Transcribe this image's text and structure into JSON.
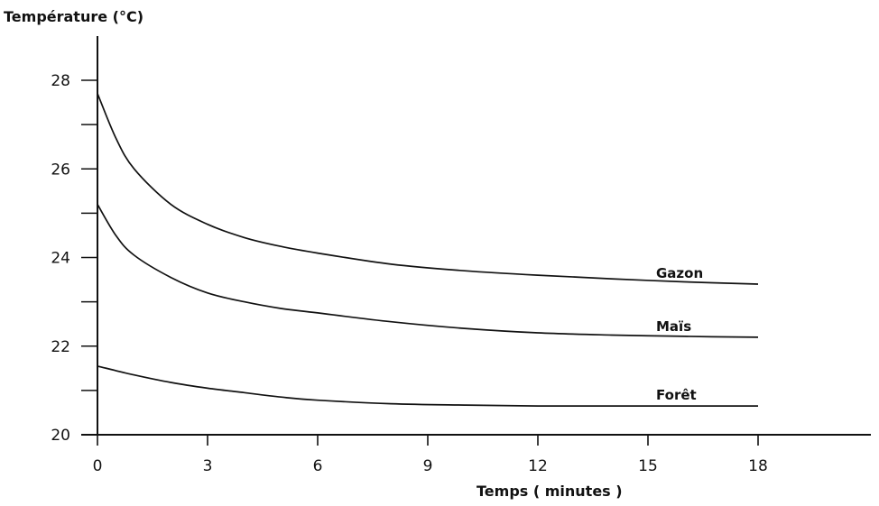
{
  "chart_data": {
    "type": "line",
    "title": "",
    "ylabel": "Température (°C)",
    "xlabel": "Temps ( minutes )",
    "xlim": [
      0,
      18
    ],
    "ylim": [
      20,
      28
    ],
    "x_ticks": [
      "0",
      "3",
      "6",
      "9",
      "12",
      "15",
      "18"
    ],
    "y_ticks": [
      "20",
      "22",
      "24",
      "26",
      "28"
    ],
    "grid": false,
    "series": [
      {
        "name": "Gazon",
        "x": [
          0,
          0.5,
          1,
          2,
          3,
          4,
          5,
          6,
          8,
          10,
          12,
          14,
          16,
          18
        ],
        "y": [
          27.7,
          26.7,
          26.0,
          25.2,
          24.75,
          24.45,
          24.25,
          24.1,
          23.85,
          23.7,
          23.6,
          23.52,
          23.45,
          23.4
        ]
      },
      {
        "name": "Maïs",
        "x": [
          0,
          0.5,
          1,
          2,
          3,
          4,
          5,
          6,
          8,
          10,
          12,
          14,
          16,
          18
        ],
        "y": [
          25.2,
          24.5,
          24.05,
          23.55,
          23.2,
          23.0,
          22.85,
          22.75,
          22.55,
          22.4,
          22.3,
          22.25,
          22.22,
          22.2
        ]
      },
      {
        "name": "Forêt",
        "x": [
          0,
          1,
          2,
          3,
          4,
          5,
          6,
          8,
          10,
          12,
          14,
          16,
          18
        ],
        "y": [
          21.55,
          21.35,
          21.18,
          21.05,
          20.95,
          20.85,
          20.78,
          20.7,
          20.67,
          20.65,
          20.65,
          20.65,
          20.65
        ]
      }
    ]
  }
}
